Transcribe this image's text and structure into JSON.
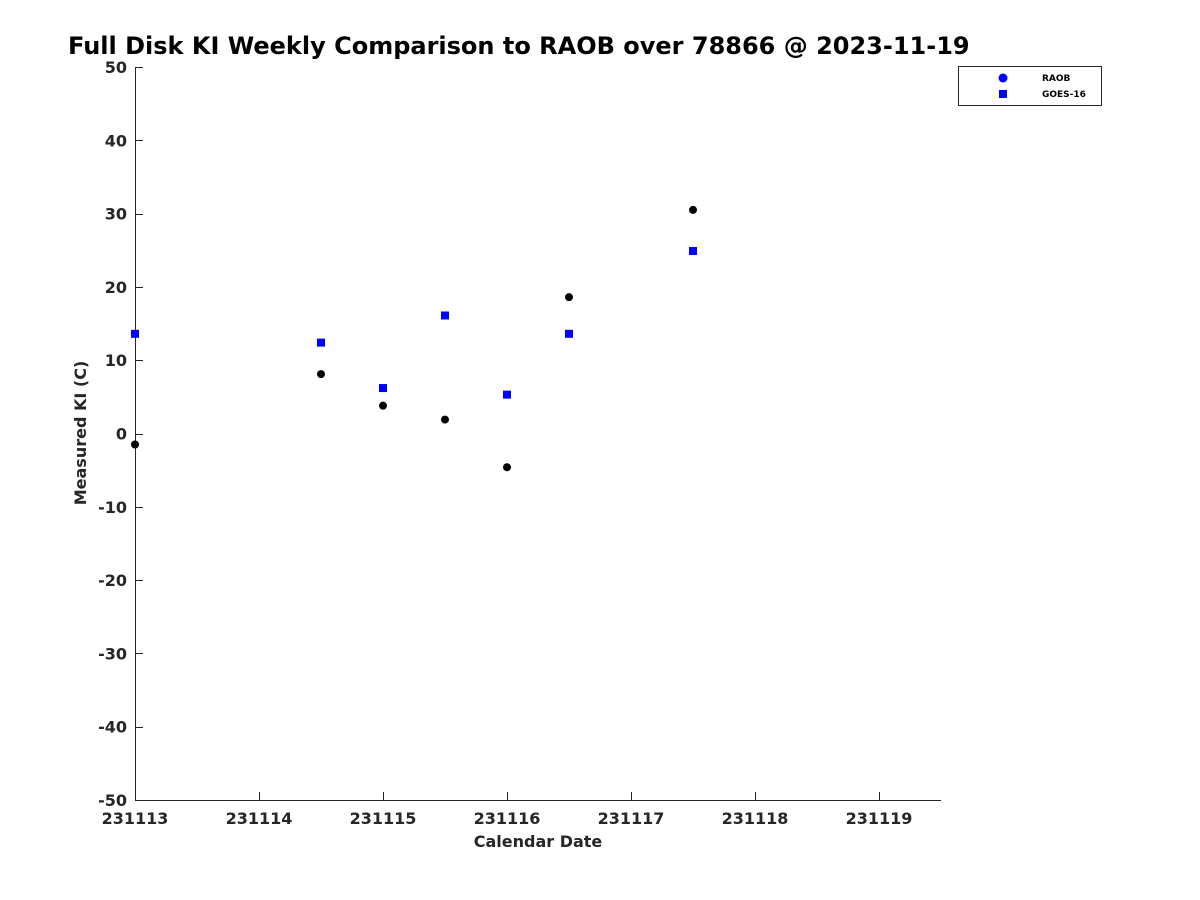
{
  "chart_data": {
    "type": "scatter",
    "title": "Full Disk KI Weekly Comparison to RAOB over 78866 @ 2023-11-19",
    "xlabel": "Calendar Date",
    "ylabel": "Measured KI (C)",
    "xlim": [
      231113,
      231119.5
    ],
    "ylim": [
      -50,
      50
    ],
    "x_ticks": [
      231113,
      231114,
      231115,
      231116,
      231117,
      231118,
      231119
    ],
    "x_tick_labels": [
      "231113",
      "231114",
      "231115",
      "231116",
      "231117",
      "231118",
      "231119"
    ],
    "y_ticks": [
      -50,
      -40,
      -30,
      -20,
      -10,
      0,
      10,
      20,
      30,
      40,
      50
    ],
    "y_tick_labels": [
      "-50",
      "-40",
      "-30",
      "-20",
      "-10",
      "0",
      "10",
      "20",
      "30",
      "40",
      "50"
    ],
    "grid": false,
    "legend_position": "top-right-outside",
    "series": [
      {
        "name": "RAOB",
        "marker": "circle",
        "legend_color": "#0000ff",
        "color": "#000000",
        "x": [
          231113.0,
          231114.5,
          231115.0,
          231115.5,
          231116.0,
          231116.5,
          231117.5
        ],
        "y": [
          -1.5,
          8.1,
          3.8,
          1.9,
          -4.6,
          18.6,
          30.5
        ]
      },
      {
        "name": "GOES-16",
        "marker": "square",
        "legend_color": "#0000ff",
        "color": "#0000ff",
        "x": [
          231113.0,
          231114.5,
          231115.0,
          231115.5,
          231116.0,
          231116.5,
          231117.5
        ],
        "y": [
          13.6,
          12.4,
          6.2,
          16.1,
          5.3,
          13.6,
          24.9
        ]
      }
    ]
  }
}
